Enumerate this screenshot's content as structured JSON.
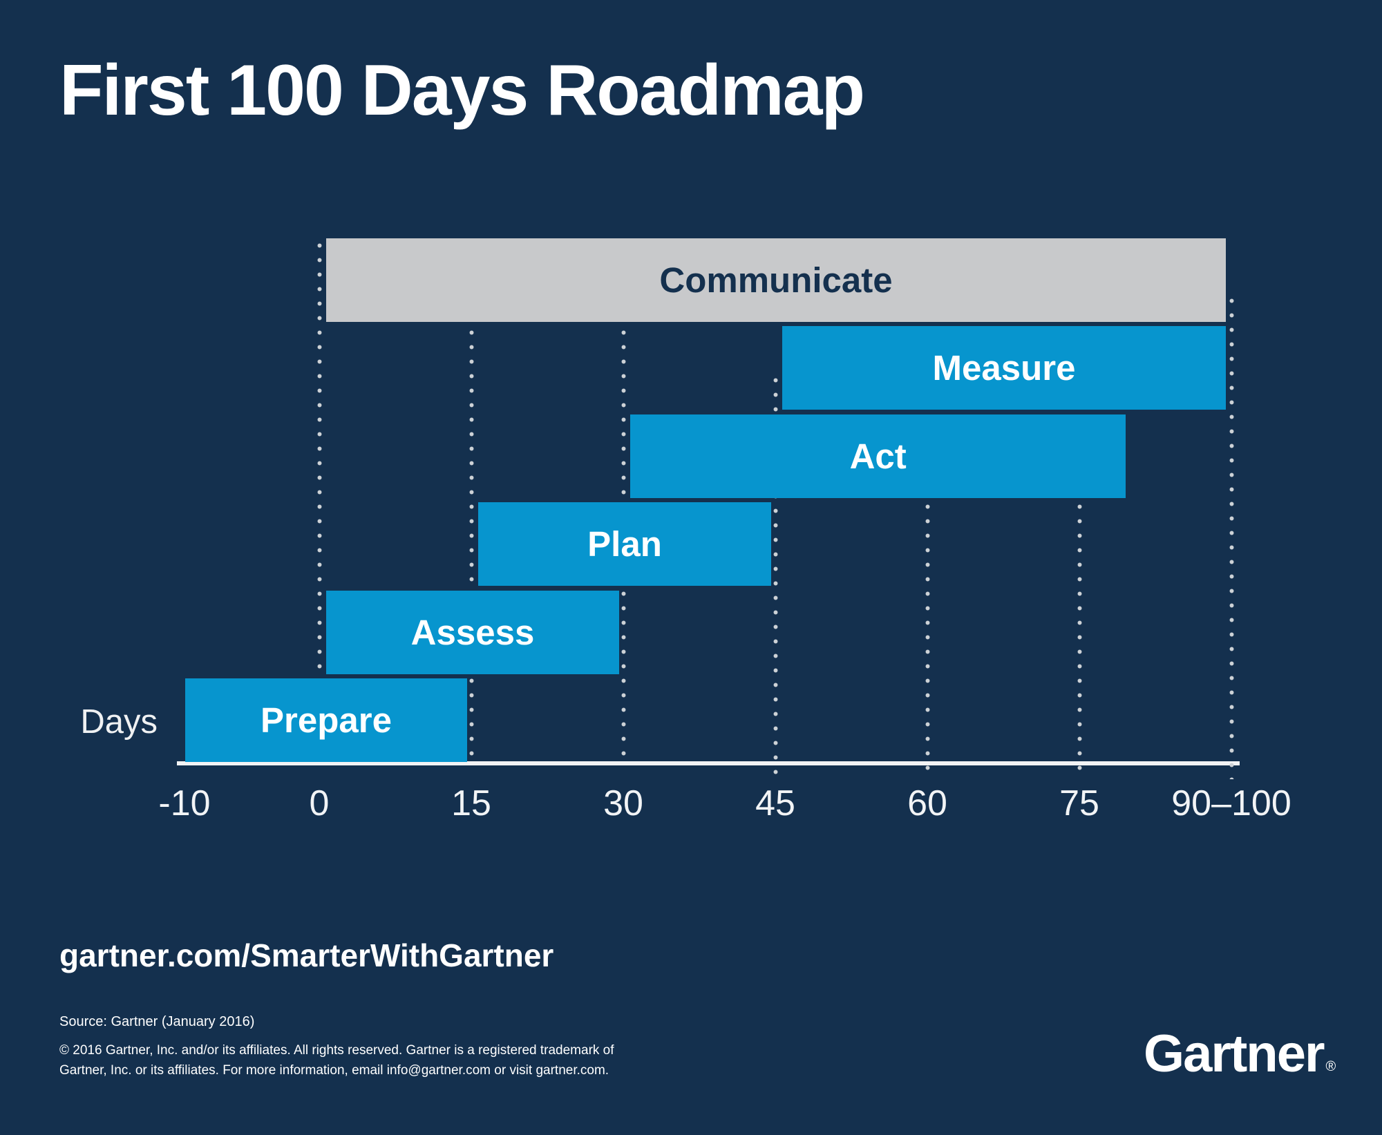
{
  "title": "First 100 Days Roadmap",
  "colors": {
    "background_navy": "#14304E",
    "bar_blue": "#0795CE",
    "bar_gray": "#C8C9CB",
    "bar_label_on_blue": "#FFFFFF",
    "bar_label_on_gray": "#14304E",
    "gridline_dot": "#CDD2D6",
    "axis_line": "#F2F3F5",
    "tick_text": "#F2F4F6"
  },
  "chart_data": {
    "type": "bar",
    "variant": "horizontal-gantt",
    "title": "First 100 Days Roadmap",
    "xlabel": "Days",
    "x_axis_unit_label": "Days",
    "x_ticks": [
      {
        "label": "-10",
        "day": -10
      },
      {
        "label": "0",
        "day": 0
      },
      {
        "label": "15",
        "day": 15
      },
      {
        "label": "30",
        "day": 30
      },
      {
        "label": "45",
        "day": 45
      },
      {
        "label": "60",
        "day": 60
      },
      {
        "label": "75",
        "day": 75
      },
      {
        "label": "90–100",
        "day": 90
      }
    ],
    "x_range_days": [
      -10,
      100
    ],
    "gridlines": {
      "style": "dotted-vertical",
      "at_days": [
        0,
        15,
        30,
        45,
        60,
        75,
        90
      ]
    },
    "legend_position": "none",
    "bars": [
      {
        "label": "Communicate",
        "start_day": 0,
        "end_day": 100,
        "style": "gray"
      },
      {
        "label": "Measure",
        "start_day": 45,
        "end_day": 100,
        "style": "blue"
      },
      {
        "label": "Act",
        "start_day": 30,
        "end_day": 80,
        "style": "blue"
      },
      {
        "label": "Plan",
        "start_day": 15,
        "end_day": 45,
        "style": "blue"
      },
      {
        "label": "Assess",
        "start_day": 0,
        "end_day": 30,
        "style": "blue"
      },
      {
        "label": "Prepare",
        "start_day": -10,
        "end_day": 15,
        "style": "blue"
      }
    ]
  },
  "footer": {
    "url": "gartner.com/SmarterWithGartner",
    "source": "Source: Gartner (January 2016)",
    "copyright_lines": [
      "© 2016 Gartner, Inc. and/or its affiliates. All rights reserved. Gartner is a registered trademark of",
      "Gartner, Inc. or its affiliates. For more information, email info@gartner.com or visit gartner.com."
    ],
    "logo_text": "Gartner",
    "logo_registered_mark": "®"
  }
}
